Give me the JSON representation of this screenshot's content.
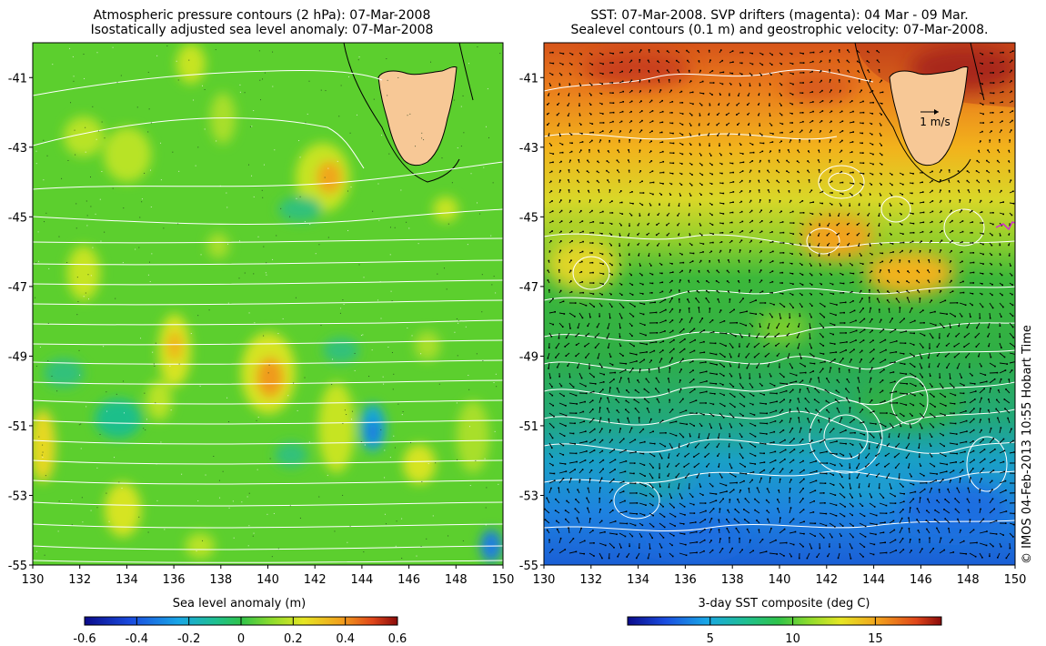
{
  "left_panel": {
    "title_line1": "Atmospheric pressure contours (2 hPa): 07-Mar-2008",
    "title_line2": "Isostatically adjusted sea level anomaly: 07-Mar-2008",
    "colorbar_label": "Sea level anomaly (m)",
    "colorbar_ticks": [
      "-0.6",
      "-0.4",
      "-0.2",
      "0",
      "0.2",
      "0.4",
      "0.6"
    ]
  },
  "right_panel": {
    "title_line1": "SST: 07-Mar-2008. SVP drifters (magenta): 04 Mar - 09 Mar.",
    "title_line2": "Sealevel contours (0.1 m) and geostrophic velocity: 07-Mar-2008.",
    "colorbar_label": "3-day SST composite (deg C)",
    "colorbar_ticks": [
      "5",
      "10",
      "15"
    ],
    "velocity_scale_label": "1 m/s"
  },
  "axes": {
    "x_ticks": [
      "130",
      "132",
      "134",
      "136",
      "138",
      "140",
      "142",
      "144",
      "146",
      "148",
      "150"
    ],
    "y_ticks": [
      "-41",
      "-43",
      "-45",
      "-47",
      "-49",
      "-51",
      "-53",
      "-55"
    ],
    "lon_range": [
      130,
      150
    ],
    "lat_range": [
      -55,
      -40
    ]
  },
  "credit": "© IMOS 04-Feb-2013 10:55 Hobart Time",
  "colors": {
    "land": "#f7c896",
    "sla_base": "#5ccf2e",
    "sst_warm": "#e0661a",
    "sst_cold": "#1c6fe6"
  }
}
